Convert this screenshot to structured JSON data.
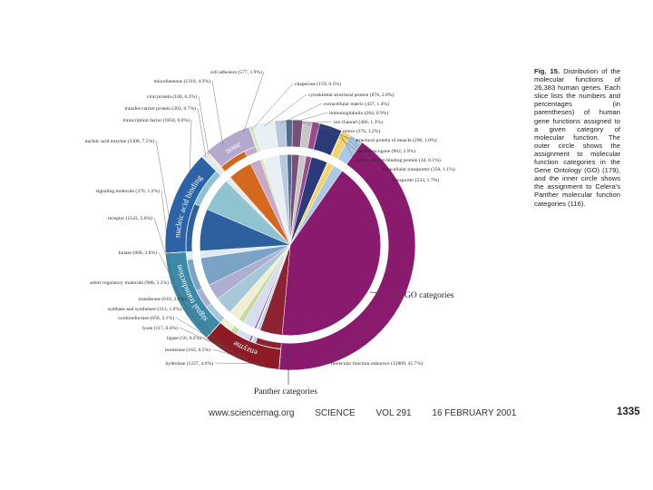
{
  "caption": {
    "figure_label": "Fig. 15.",
    "text": "Distribution of the molecular functions of 26,383 human genes. Each slice lists the numbers and percentages (in parentheses) of human gene functions assigned to a given category of molecular function. The outer circle shows the assignment to molecular function categories in the Gene Ontology (GO) (179), and the inner circle shows the assignment to Celera's Panther molecular function categories (116)."
  },
  "footer": {
    "url": "www.sciencemag.org",
    "journal": "SCIENCE",
    "volume": "VOL 291",
    "date": "16 FEBRUARY 2001",
    "page": "1335"
  },
  "chart_data": {
    "type": "pie",
    "title": "",
    "total_genes": 26383,
    "outer_ring_label": "GO categories",
    "inner_ring_label": "Panther categories",
    "slices": [
      {
        "name": "molecular function unknown",
        "count": 12809,
        "percent": "41.7%",
        "color": "#8a1a6e"
      },
      {
        "name": "hydrolase",
        "count": 1227,
        "percent": "4.0%",
        "color": "#8c2232"
      },
      {
        "name": "isomerase",
        "count": 163,
        "percent": "0.5%",
        "color": "#b3d4e2"
      },
      {
        "name": "ligase",
        "count": 56,
        "percent": "0.2%",
        "color": "#e8eedc"
      },
      {
        "name": "lyase",
        "count": 117,
        "percent": "0.4%",
        "color": "#9a6fae"
      },
      {
        "name": "oxidoreductase",
        "count": 656,
        "percent": "2.1%",
        "color": "#d7ddee"
      },
      {
        "name": "synthase and synthetase",
        "count": 313,
        "percent": "1.0%",
        "color": "#c9d9a4"
      },
      {
        "name": "transferase",
        "count": 610,
        "percent": "2.0%",
        "color": "#f0eed3"
      },
      {
        "name": "select regulatory molecule",
        "count": 988,
        "percent": "3.2%",
        "color": "#a6c8d8"
      },
      {
        "name": "kinase",
        "count": 868,
        "percent": "2.8%",
        "color": "#aeaed3"
      },
      {
        "name": "receptor",
        "count": 1543,
        "percent": "5.0%",
        "color": "#7aa3c6"
      },
      {
        "name": "signaling molecule",
        "count": 376,
        "percent": "1.2%",
        "color": "#dfe9f3"
      },
      {
        "name": "nucleic acid enzyme",
        "count": 2308,
        "percent": "7.5%",
        "color": "#2e5f9e"
      },
      {
        "name": "transcription factor",
        "count": 1850,
        "percent": "6.0%",
        "color": "#8ec3cf"
      },
      {
        "name": "transfer/carrier protein",
        "count": 203,
        "percent": "0.7%",
        "color": "#e2e8f2"
      },
      {
        "name": "viral protein",
        "count": 100,
        "percent": "0.3%",
        "color": "#f4e3c8"
      },
      {
        "name": "miscellaneous",
        "count": 1318,
        "percent": "4.3%",
        "color": "#d2691e"
      },
      {
        "name": "cell adhesion",
        "count": 577,
        "percent": "1.9%",
        "color": "#c6a8c8"
      },
      {
        "name": "chaperone",
        "count": 159,
        "percent": "0.5%",
        "color": "#d8e6c2"
      },
      {
        "name": "cytoskeletal structural protein",
        "count": 876,
        "percent": "2.8%",
        "color": "#e8f0f5"
      },
      {
        "name": "extracellular matrix",
        "count": 437,
        "percent": "1.4%",
        "color": "#b9c8dc"
      },
      {
        "name": "immunoglobulin",
        "count": 264,
        "percent": "0.9%",
        "color": "#4e6b8c"
      },
      {
        "name": "ion channel",
        "count": 406,
        "percent": "1.3%",
        "color": "#7a4f7a"
      },
      {
        "name": "motor",
        "count": 376,
        "percent": "1.2%",
        "color": "#c7c7c7"
      },
      {
        "name": "structural protein of muscle",
        "count": 296,
        "percent": "1.0%",
        "color": "#9c4a8c"
      },
      {
        "name": "proto-oncogene",
        "count": 902,
        "percent": "2.9%",
        "color": "#2a3a7a"
      },
      {
        "name": "select calcium binding protein",
        "count": 34,
        "percent": "0.1%",
        "color": "#f2e12a"
      },
      {
        "name": "intracellular transporter",
        "count": 350,
        "percent": "1.1%",
        "color": "#f3d36a"
      },
      {
        "name": "transporter",
        "count": 533,
        "percent": "1.7%",
        "color": "#aac9e6"
      }
    ],
    "inner_categories": [
      {
        "name": "none",
        "color": "#b4a8cc"
      },
      {
        "name": "nucleic acid binding",
        "color": "#2b63a6"
      },
      {
        "name": "signal transduction",
        "color": "#3d8aa8"
      },
      {
        "name": "enzyme",
        "color": "#8c1b26"
      }
    ]
  }
}
